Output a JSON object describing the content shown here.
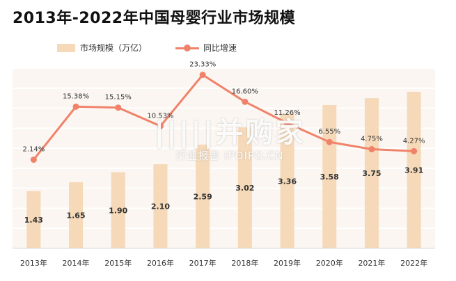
{
  "title": "2013年-2022年中国母婴行业市场规模",
  "watermark": {
    "main": "|||||并购家",
    "sub": "行业报告 IPOIPO.CN"
  },
  "colors": {
    "bar": "#f5d9b8",
    "line": "#f0826a",
    "plot_bg": "#fbf6f1",
    "grid": "#ffffff"
  },
  "chart_data": {
    "type": "bar",
    "categories": [
      "2013年",
      "2014年",
      "2015年",
      "2016年",
      "2017年",
      "2018年",
      "2019年",
      "2020年",
      "2021年",
      "2022年"
    ],
    "series": [
      {
        "name": "市场规模（万亿）",
        "type": "bar",
        "values": [
          1.43,
          1.65,
          1.9,
          2.1,
          2.59,
          3.02,
          3.36,
          3.58,
          3.75,
          3.91
        ],
        "labels": [
          "1.43",
          "1.65",
          "1.90",
          "2.10",
          "2.59",
          "3.02",
          "3.36",
          "3.58",
          "3.75",
          "3.91"
        ]
      },
      {
        "name": "同比增速",
        "type": "line",
        "values": [
          2.14,
          15.38,
          15.15,
          10.53,
          23.33,
          16.6,
          11.26,
          6.55,
          4.75,
          4.27
        ],
        "labels": [
          "2.14%",
          "15.38%",
          "15.15%",
          "10.53%",
          "23.33%",
          "16.60%",
          "11.26%",
          "6.55%",
          "4.75%",
          "4.27%"
        ]
      }
    ],
    "ylim_bar": [
      0,
      4.5
    ],
    "ylim_line": [
      -20,
      25
    ],
    "grid": true,
    "legend": "top-left"
  }
}
